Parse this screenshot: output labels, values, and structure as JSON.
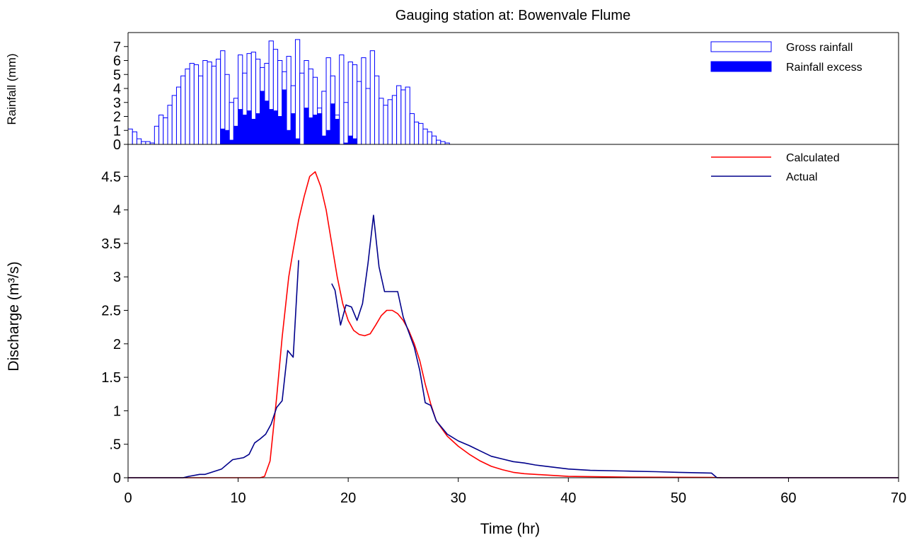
{
  "chart_data": [
    {
      "type": "bar",
      "title": "Gauging station at: Bowenvale Flume",
      "ylabel": "Rainfall (mm)",
      "xlim": [
        0,
        70
      ],
      "ylim": [
        0,
        8
      ],
      "yticks": [
        "0",
        "1",
        "2",
        "3",
        "4",
        "5",
        "6",
        "7"
      ],
      "bin_width_hr": 0.4,
      "legend_position": "top-right",
      "colors": {
        "gross": "#0000ff",
        "excess": "#0000ff"
      },
      "series": [
        {
          "name": "Gross rainfall",
          "style": "hollow",
          "values": [
            1.1,
            0.9,
            0.4,
            0.2,
            0.2,
            0.1,
            1.3,
            2.1,
            1.9,
            2.8,
            3.5,
            4.1,
            4.9,
            5.4,
            5.8,
            5.7,
            4.9,
            6.0,
            5.9,
            5.6,
            6.1,
            6.7,
            5.0,
            3.0,
            3.3,
            6.4,
            5.1,
            6.5,
            6.6,
            6.1,
            5.5,
            5.8,
            7.4,
            6.8,
            6.0,
            5.2,
            6.3,
            4.2,
            7.5,
            5.1,
            6.0,
            5.4,
            4.8,
            2.6,
            3.8,
            6.2,
            4.9,
            2.1,
            6.4,
            3.0,
            5.9,
            5.7,
            4.5,
            6.2,
            4.0,
            6.7,
            4.9,
            3.3,
            2.8,
            3.2,
            3.5,
            4.2,
            3.9,
            4.1,
            2.2,
            1.6,
            1.5,
            1.1,
            0.9,
            0.6,
            0.3,
            0.2,
            0.1
          ]
        },
        {
          "name": "Rainfall excess",
          "style": "filled",
          "values": [
            0,
            0,
            0,
            0,
            0,
            0,
            0,
            0,
            0,
            0,
            0,
            0,
            0,
            0,
            0,
            0,
            0,
            0,
            0,
            0,
            0,
            1.1,
            1.0,
            0.3,
            1.3,
            2.5,
            2.1,
            2.4,
            1.8,
            2.2,
            3.8,
            3.1,
            2.5,
            2.4,
            2.0,
            3.9,
            1.0,
            2.2,
            0.4,
            0,
            2.6,
            1.9,
            2.1,
            2.2,
            0.6,
            1.0,
            2.9,
            1.8,
            0,
            0.1,
            0.6,
            0.4,
            0,
            0,
            0,
            0,
            0,
            0,
            0,
            0,
            0,
            0,
            0,
            0,
            0,
            0,
            0,
            0,
            0,
            0,
            0,
            0,
            0
          ],
          "start_index": 0
        }
      ]
    },
    {
      "type": "line",
      "xlabel": "Time (hr)",
      "ylabel": "Discharge (m³/s)",
      "xlim": [
        0,
        70
      ],
      "ylim": [
        0,
        5
      ],
      "xticks": [
        0,
        10,
        20,
        30,
        40,
        50,
        60,
        70
      ],
      "xtick_labels": [
        "0",
        "10",
        "20",
        "30",
        "40",
        "50",
        "60",
        "70"
      ],
      "yticks": [
        0,
        0.5,
        1,
        1.5,
        2,
        2.5,
        3,
        3.5,
        4,
        4.5
      ],
      "ytick_labels": [
        "0",
        ".5",
        "1",
        "1.5",
        "2",
        "2.5",
        "3",
        "3.5",
        "4",
        "4.5"
      ],
      "legend_position": "top-right",
      "series": [
        {
          "name": "Calculated",
          "color": "#ff0000",
          "segments": [
            [
              [
                0,
                0
              ],
              [
                12,
                0
              ],
              [
                12.4,
                0.02
              ],
              [
                12.9,
                0.25
              ],
              [
                13.5,
                1.2
              ],
              [
                14,
                2.1
              ],
              [
                14.6,
                3.0
              ],
              [
                15,
                3.4
              ],
              [
                15.5,
                3.85
              ],
              [
                16,
                4.2
              ],
              [
                16.5,
                4.5
              ],
              [
                17,
                4.57
              ],
              [
                17.5,
                4.35
              ],
              [
                18,
                4.0
              ],
              [
                18.5,
                3.5
              ],
              [
                19,
                3.0
              ],
              [
                19.5,
                2.6
              ],
              [
                20,
                2.35
              ],
              [
                20.5,
                2.2
              ],
              [
                21,
                2.14
              ],
              [
                21.5,
                2.12
              ],
              [
                22,
                2.15
              ],
              [
                22.5,
                2.28
              ],
              [
                23,
                2.42
              ],
              [
                23.5,
                2.5
              ],
              [
                24,
                2.5
              ],
              [
                24.5,
                2.45
              ],
              [
                25,
                2.35
              ],
              [
                25.5,
                2.2
              ],
              [
                26,
                2.0
              ],
              [
                26.5,
                1.75
              ],
              [
                27,
                1.4
              ],
              [
                27.5,
                1.1
              ],
              [
                28,
                0.85
              ],
              [
                29,
                0.62
              ],
              [
                30,
                0.47
              ],
              [
                31,
                0.35
              ],
              [
                32,
                0.25
              ],
              [
                33,
                0.17
              ],
              [
                34,
                0.12
              ],
              [
                35,
                0.08
              ],
              [
                36,
                0.06
              ],
              [
                38,
                0.04
              ],
              [
                40,
                0.02
              ],
              [
                45,
                0.01
              ],
              [
                53,
                0.005
              ],
              [
                54,
                0
              ],
              [
                70,
                0
              ]
            ]
          ]
        },
        {
          "name": "Actual",
          "color": "#00008b",
          "segments": [
            [
              [
                0,
                0
              ],
              [
                5,
                0
              ],
              [
                5.5,
                0.02
              ],
              [
                6.5,
                0.05
              ],
              [
                7,
                0.05
              ],
              [
                8.5,
                0.13
              ],
              [
                9.5,
                0.27
              ],
              [
                10.5,
                0.3
              ],
              [
                11,
                0.35
              ],
              [
                11.5,
                0.52
              ],
              [
                12,
                0.58
              ],
              [
                12.5,
                0.65
              ],
              [
                13,
                0.8
              ],
              [
                13.5,
                1.05
              ],
              [
                14,
                1.15
              ],
              [
                14.5,
                1.9
              ],
              [
                15,
                1.8
              ],
              [
                15.5,
                3.25
              ]
            ],
            [
              [
                18.5,
                2.9
              ],
              [
                18.8,
                2.8
              ],
              [
                19.3,
                2.28
              ],
              [
                19.8,
                2.58
              ],
              [
                20.3,
                2.55
              ],
              [
                20.8,
                2.35
              ],
              [
                21.3,
                2.6
              ],
              [
                21.8,
                3.2
              ],
              [
                22.3,
                3.92
              ],
              [
                22.8,
                3.15
              ],
              [
                23.3,
                2.78
              ],
              [
                24.5,
                2.78
              ],
              [
                25,
                2.4
              ],
              [
                26,
                1.95
              ],
              [
                26.5,
                1.6
              ],
              [
                27,
                1.12
              ],
              [
                27.5,
                1.08
              ],
              [
                28,
                0.85
              ],
              [
                29,
                0.65
              ],
              [
                30,
                0.55
              ],
              [
                31,
                0.48
              ],
              [
                32,
                0.4
              ],
              [
                33,
                0.32
              ],
              [
                34,
                0.28
              ],
              [
                35,
                0.24
              ],
              [
                36,
                0.22
              ],
              [
                37,
                0.19
              ],
              [
                38,
                0.17
              ],
              [
                39,
                0.15
              ],
              [
                40,
                0.13
              ],
              [
                42,
                0.11
              ],
              [
                45,
                0.1
              ],
              [
                48,
                0.09
              ],
              [
                50,
                0.08
              ],
              [
                53,
                0.07
              ],
              [
                53.5,
                0
              ],
              [
                70,
                0
              ]
            ]
          ]
        }
      ]
    }
  ]
}
